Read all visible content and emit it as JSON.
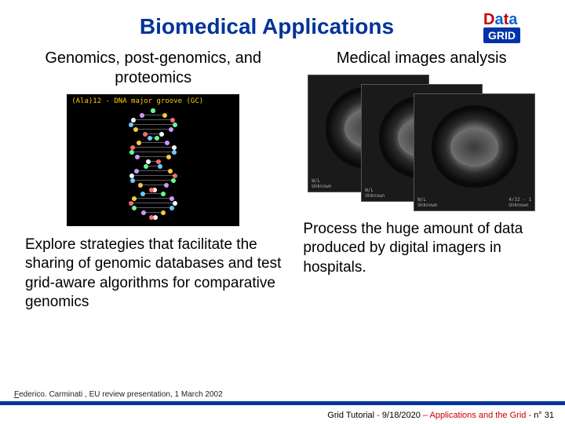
{
  "title": "Biomedical Applications",
  "logo": {
    "data": "Data",
    "grid": "GRID"
  },
  "left": {
    "subtitle": "Genomics, post-genomics, and proteomics",
    "dna_label": "(Ala)12 - DNA major groove (GC)",
    "body": "Explore strategies that facilitate the sharing of genomic databases and test grid-aware algorithms for comparative genomics"
  },
  "right": {
    "subtitle": "Medical images analysis",
    "body": "Process the huge amount of data produced by digital imagers in hospitals."
  },
  "citation": "Federico. Carminati , EU review presentation, 1 March 2002",
  "footer": {
    "left": "Grid Tutorial ",
    "dash1": "- ",
    "date": "9/18/2020 ",
    "dash2": "– ",
    "topic": "Applications and the Grid ",
    "dash3": "- ",
    "page": "n° 31"
  },
  "colors": {
    "title": "#003399",
    "accent": "#cc0000",
    "footer_bar": "#003399"
  },
  "dna_helix": {
    "points": 24,
    "colors": [
      "#66ccff",
      "#ffcc33",
      "#ff6666",
      "#66ff99",
      "#cc99ff",
      "#ffffff"
    ]
  }
}
